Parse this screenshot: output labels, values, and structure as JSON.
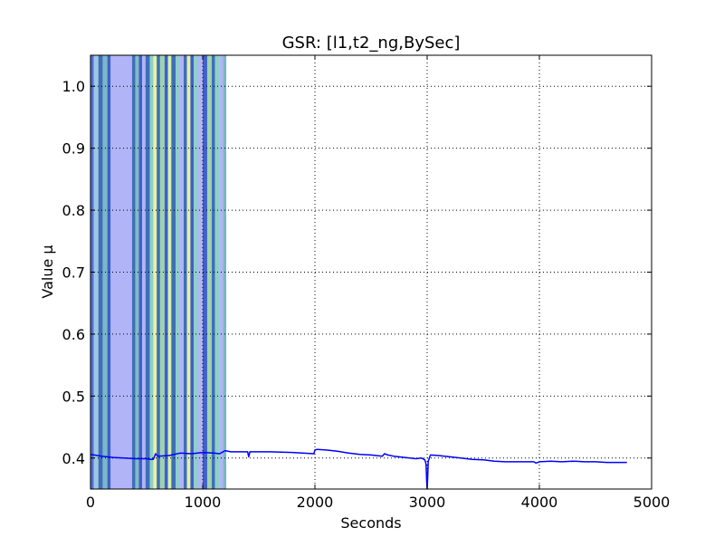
{
  "chart_data": {
    "type": "line",
    "title": "GSR: [l1,t2_ng,BySec]",
    "xlabel": "Seconds",
    "ylabel": "Value µ",
    "xlim": [
      0,
      5000
    ],
    "ylim": [
      0.35,
      1.05
    ],
    "xticks": [
      0,
      1000,
      2000,
      3000,
      4000,
      5000
    ],
    "xtick_labels": [
      "0",
      "1000",
      "2000",
      "3000",
      "4000",
      "5000"
    ],
    "yticks": [
      0.4,
      0.5,
      0.6,
      0.7,
      0.8,
      0.9,
      1.0
    ],
    "ytick_labels": [
      "0.4",
      "0.5",
      "0.6",
      "0.7",
      "0.8",
      "0.9",
      "1.0"
    ],
    "grid": true,
    "line_color": "#0000ff",
    "series": [
      {
        "x": [
          0,
          100,
          200,
          300,
          400,
          500,
          540,
          560,
          580,
          600,
          700,
          800,
          900,
          1000,
          1100,
          1150,
          1200,
          1250,
          1400,
          1410,
          1420,
          1600,
          1800,
          1990,
          2000,
          2020,
          2100,
          2200,
          2300,
          2400,
          2500,
          2600,
          2620,
          2650,
          2700,
          2800,
          2900,
          2950,
          2980,
          2990,
          2995,
          3000,
          3005,
          3010,
          3030,
          3100,
          3200,
          3300,
          3400,
          3500,
          3600,
          3700,
          3800,
          3900,
          3950,
          3970,
          4000,
          4100,
          4200,
          4300,
          4400,
          4500,
          4600,
          4700,
          4780
        ],
        "y": [
          0.406,
          0.403,
          0.401,
          0.4,
          0.399,
          0.399,
          0.398,
          0.398,
          0.407,
          0.403,
          0.404,
          0.408,
          0.407,
          0.409,
          0.408,
          0.407,
          0.412,
          0.41,
          0.41,
          0.402,
          0.41,
          0.41,
          0.409,
          0.407,
          0.413,
          0.414,
          0.413,
          0.411,
          0.408,
          0.406,
          0.405,
          0.403,
          0.407,
          0.405,
          0.403,
          0.401,
          0.399,
          0.4,
          0.397,
          0.39,
          0.365,
          0.35,
          0.37,
          0.395,
          0.405,
          0.404,
          0.402,
          0.4,
          0.398,
          0.397,
          0.395,
          0.394,
          0.394,
          0.394,
          0.394,
          0.392,
          0.394,
          0.395,
          0.394,
          0.395,
          0.394,
          0.394,
          0.393,
          0.393,
          0.393
        ]
      }
    ],
    "bands": [
      {
        "x0": 0,
        "x1": 30,
        "color": "#4f6fd9"
      },
      {
        "x0": 30,
        "x1": 70,
        "color": "#9ec7e0"
      },
      {
        "x0": 70,
        "x1": 110,
        "color": "#3f6fb8"
      },
      {
        "x0": 110,
        "x1": 150,
        "color": "#79b8c8"
      },
      {
        "x0": 150,
        "x1": 180,
        "color": "#3f61c8"
      },
      {
        "x0": 180,
        "x1": 370,
        "color": "#b1b4f7"
      },
      {
        "x0": 370,
        "x1": 400,
        "color": "#3f6fb8"
      },
      {
        "x0": 400,
        "x1": 430,
        "color": "#7fbdc0"
      },
      {
        "x0": 430,
        "x1": 460,
        "color": "#3f61c8"
      },
      {
        "x0": 460,
        "x1": 490,
        "color": "#b1b4f7"
      },
      {
        "x0": 490,
        "x1": 530,
        "color": "#3f6fb8"
      },
      {
        "x0": 530,
        "x1": 560,
        "color": "#8ecfc8"
      },
      {
        "x0": 560,
        "x1": 590,
        "color": "#e8f0a0"
      },
      {
        "x0": 590,
        "x1": 620,
        "color": "#3f6fb8"
      },
      {
        "x0": 620,
        "x1": 660,
        "color": "#9fd3b0"
      },
      {
        "x0": 660,
        "x1": 690,
        "color": "#3f61c8"
      },
      {
        "x0": 690,
        "x1": 720,
        "color": "#d8f0a8"
      },
      {
        "x0": 720,
        "x1": 760,
        "color": "#3f6fb8"
      },
      {
        "x0": 760,
        "x1": 790,
        "color": "#8ecfc8"
      },
      {
        "x0": 790,
        "x1": 830,
        "color": "#b1b4f7"
      },
      {
        "x0": 830,
        "x1": 860,
        "color": "#3f6fb8"
      },
      {
        "x0": 860,
        "x1": 890,
        "color": "#e8f0a0"
      },
      {
        "x0": 890,
        "x1": 920,
        "color": "#3f61c8"
      },
      {
        "x0": 920,
        "x1": 960,
        "color": "#8ecfc8"
      },
      {
        "x0": 960,
        "x1": 1000,
        "color": "#b1b4f7"
      },
      {
        "x0": 1000,
        "x1": 1040,
        "color": "#3f61c8"
      },
      {
        "x0": 1040,
        "x1": 1080,
        "color": "#9fd3b0"
      },
      {
        "x0": 1080,
        "x1": 1110,
        "color": "#3f6fb8"
      },
      {
        "x0": 1110,
        "x1": 1150,
        "color": "#8ecfc8"
      },
      {
        "x0": 1150,
        "x1": 1180,
        "color": "#b1b4f7"
      },
      {
        "x0": 1180,
        "x1": 1210,
        "color": "#79b8c8"
      }
    ]
  }
}
